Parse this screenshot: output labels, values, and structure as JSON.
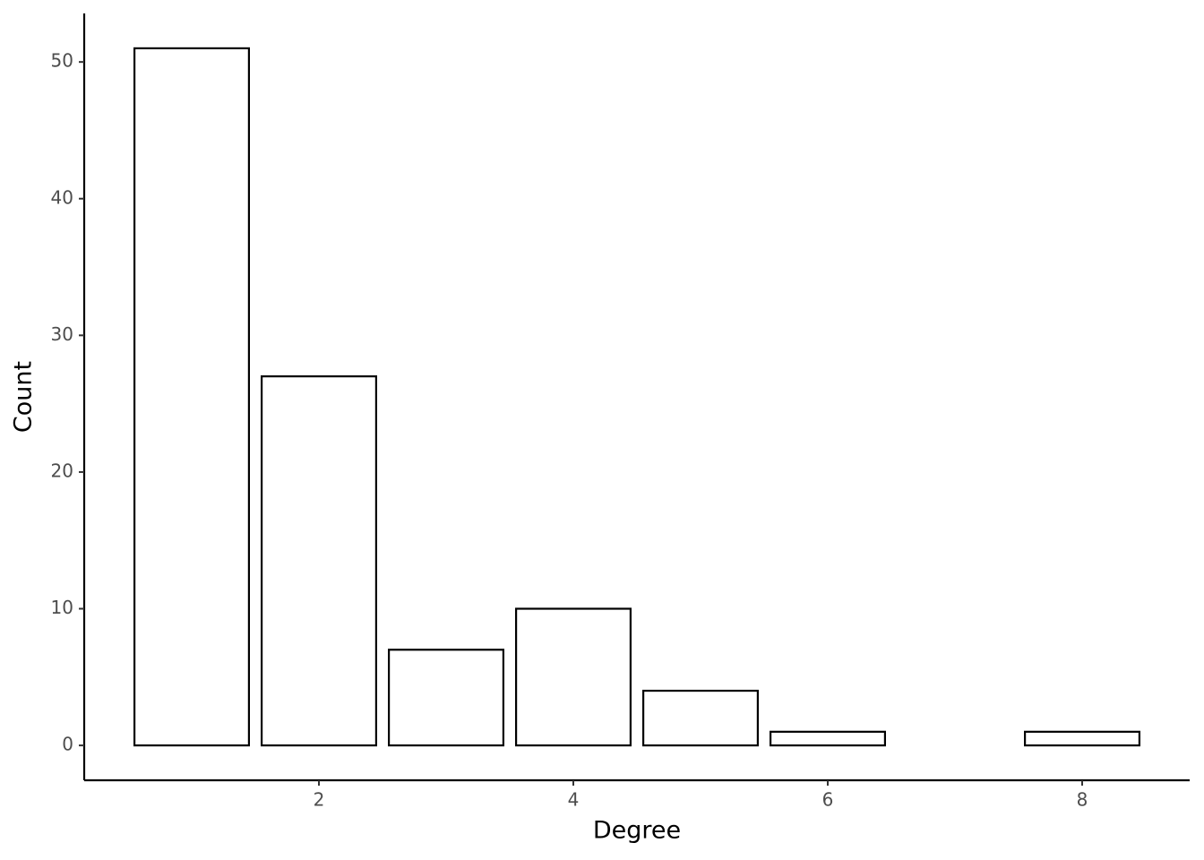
{
  "chart_data": {
    "type": "bar",
    "x": [
      1,
      2,
      3,
      4,
      5,
      6,
      8
    ],
    "values": [
      51,
      27,
      7,
      10,
      4,
      1,
      1
    ],
    "color": "#ffffff",
    "edgecolor": "#000000",
    "xlabel": "Degree",
    "ylabel": "Count",
    "xlim": [
      0.155,
      8.845
    ],
    "xticks": [
      2,
      4,
      6,
      8
    ],
    "ylim": [
      -2.55,
      53.55
    ],
    "yticks": [
      0,
      10,
      20,
      30,
      40,
      50
    ],
    "grid": false
  }
}
